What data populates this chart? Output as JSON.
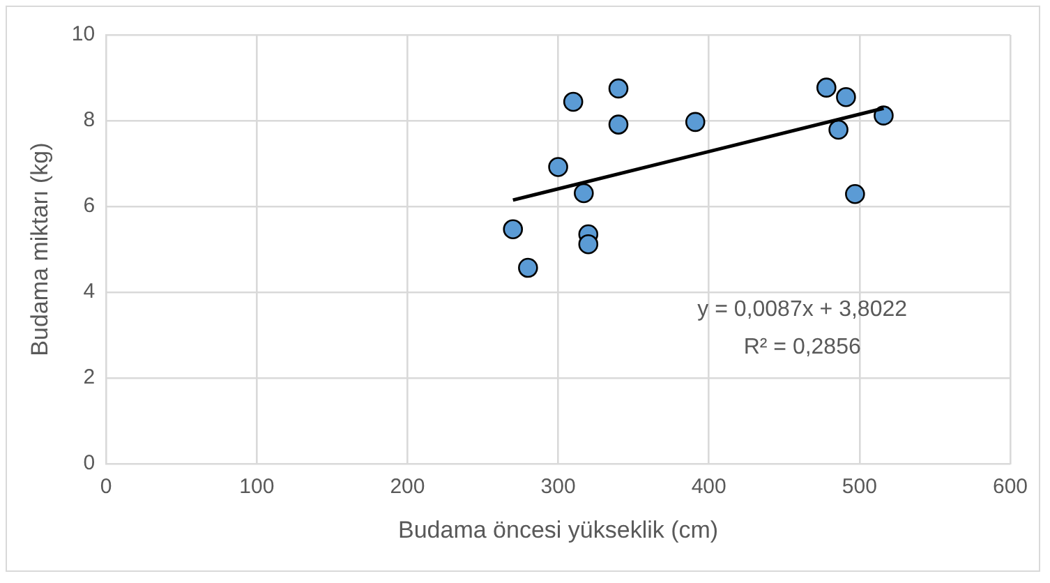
{
  "chart_data": {
    "type": "scatter",
    "xlabel": "Budama öncesi yükseklik (cm)",
    "ylabel": "Budama miktarı (kg)",
    "xlim": [
      0,
      600
    ],
    "xticks": [
      0,
      100,
      200,
      300,
      400,
      500,
      600
    ],
    "ylim": [
      0,
      10
    ],
    "yticks": [
      0,
      2,
      4,
      6,
      8,
      10
    ],
    "grid": true,
    "legend": false,
    "series": [
      {
        "marker": "circle",
        "color": "#5b9bd5",
        "x": [
          270,
          280,
          300,
          310,
          317,
          320,
          320,
          340,
          340,
          391,
          478,
          491,
          486,
          516,
          497
        ],
        "values": [
          5.47,
          4.57,
          6.92,
          8.44,
          6.31,
          5.35,
          5.12,
          8.75,
          7.91,
          7.97,
          8.77,
          8.55,
          7.79,
          8.12,
          6.29
        ]
      },
      {
        "type": "line",
        "color": "#000000",
        "x": [
          270,
          516
        ],
        "values": [
          6.15,
          8.29
        ]
      }
    ],
    "annotations": [
      "y = 0,0087x + 3,8022",
      "R² = 0,2856"
    ]
  }
}
